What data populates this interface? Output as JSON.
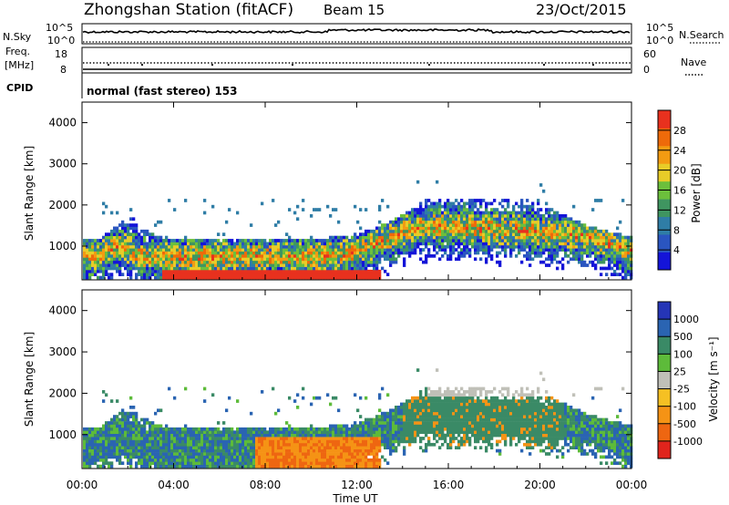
{
  "header": {
    "station": "Zhongshan Station (fitACF)",
    "beam": "Beam 15",
    "date": "23/Oct/2015"
  },
  "aux_panels": {
    "nsky_label": "N.Sky",
    "nsearch_label": "N.Search",
    "nsky_ticks": [
      "10^5",
      "10^0"
    ],
    "nsearch_ticks": [
      "10^5",
      "10^0"
    ],
    "freq_label": "Freq.",
    "freq_unit": "[MHz]",
    "freq_ticks": [
      "18",
      "8"
    ],
    "nave_label": "Nave",
    "nave_ticks": [
      "60",
      "0"
    ],
    "cpid_label": "CPID",
    "cpid_value": "normal (fast stereo) 153"
  },
  "chart_data": [
    {
      "type": "heatmap",
      "name": "power",
      "ylabel": "Slant Range [km]",
      "xlabel": "Time UT",
      "yticks": [
        "1000",
        "2000",
        "3000",
        "4000"
      ],
      "ylim": [
        180,
        4500
      ],
      "colorbar": {
        "label": "Power [dB]",
        "ticks": [
          "4",
          "8",
          "12",
          "16",
          "20",
          "24",
          "28"
        ],
        "range": [
          0,
          32
        ],
        "colors": [
          "#1414d8",
          "#2a55c0",
          "#2f7da6",
          "#3f9560",
          "#6cbf3c",
          "#e8cc28",
          "#f39b12",
          "#ee6a0a",
          "#e8311e"
        ]
      }
    },
    {
      "type": "heatmap",
      "name": "velocity",
      "ylabel": "Slant Range [km]",
      "xlabel": "Time UT",
      "yticks": [
        "1000",
        "2000",
        "3000",
        "4000"
      ],
      "ylim": [
        180,
        4500
      ],
      "colorbar": {
        "label": "Velocity [m s⁻¹]",
        "ticks": [
          "1000",
          "500",
          "100",
          "25",
          "-25",
          "-100",
          "-500",
          "-1000"
        ],
        "colors": [
          "#2535b6",
          "#2a64b2",
          "#3a8a66",
          "#5dbb3a",
          "#c0c0b8",
          "#f5c023",
          "#f59315",
          "#ee6611",
          "#e0241c"
        ]
      }
    }
  ],
  "time_axis": {
    "label": "Time UT",
    "ticks": [
      "00:00",
      "04:00",
      "08:00",
      "12:00",
      "16:00",
      "20:00",
      "00:00"
    ]
  }
}
